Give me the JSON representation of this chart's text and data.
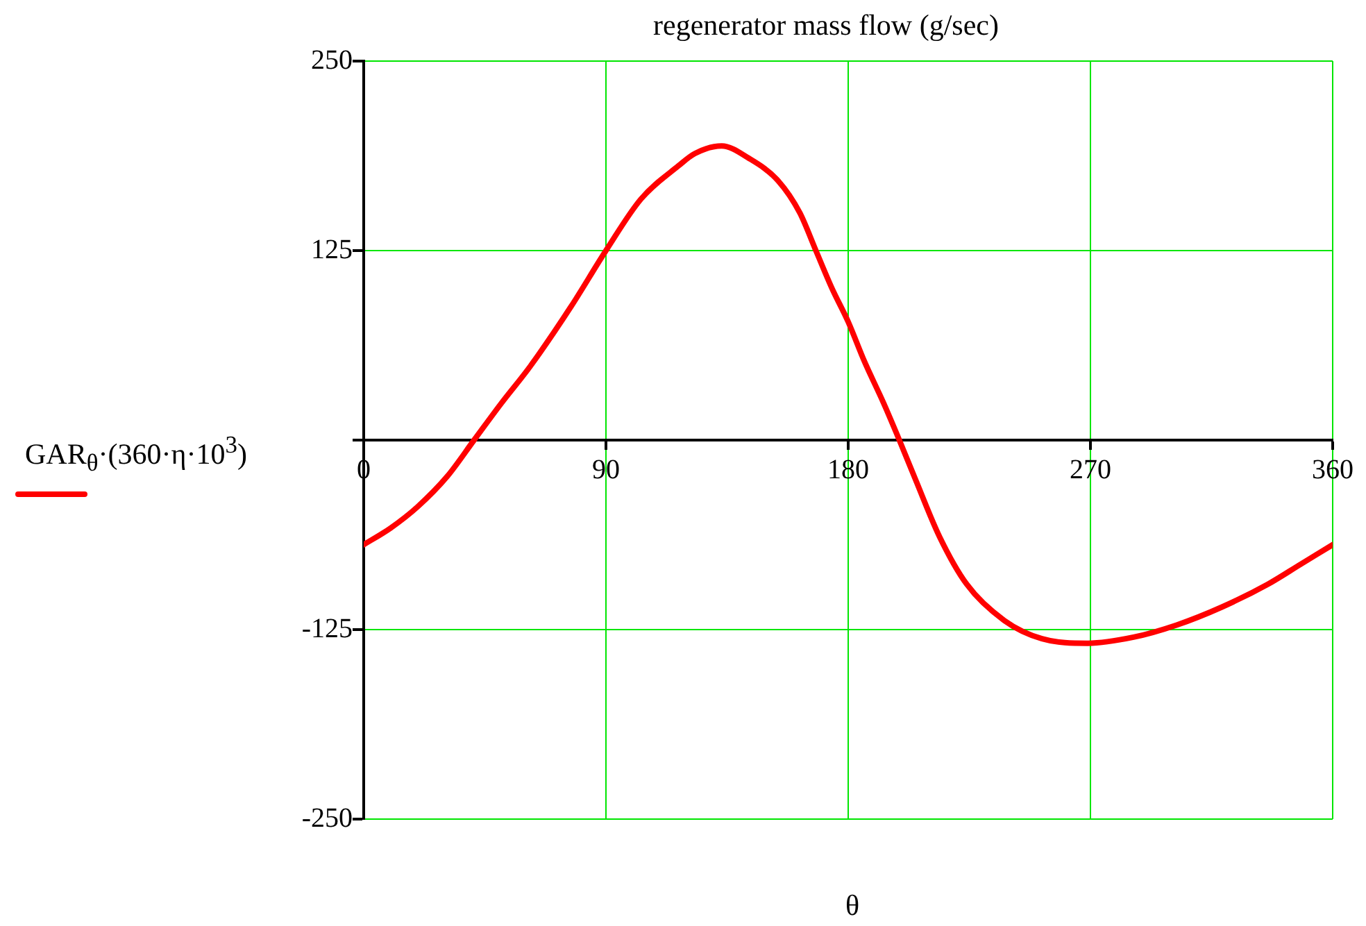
{
  "chart_data": {
    "type": "line",
    "title": "regenerator mass flow (g/sec)",
    "xlabel": "θ",
    "x": [
      0,
      10,
      20,
      31,
      41,
      51,
      62,
      77,
      90,
      103,
      117,
      123,
      133,
      143,
      154,
      162,
      168,
      174,
      180,
      186,
      193,
      199,
      205,
      214,
      224,
      238,
      252,
      269,
      286,
      302,
      319,
      336,
      348,
      360
    ],
    "series": [
      {
        "name": "GAR$_{θ}$·(360·η·10$^{3}$)",
        "color": "#ff0000",
        "values": [
          -69,
          -58,
          -44,
          -24,
          0,
          24,
          49,
          88,
          125,
          159,
          181,
          189,
          194,
          186,
          171,
          150,
          125,
          100,
          78,
          52,
          25,
          0,
          -26,
          -64,
          -95,
          -119,
          -131,
          -134,
          -130,
          -122,
          -110,
          -95,
          -82,
          -69
        ]
      }
    ],
    "xlim": [
      0,
      360
    ],
    "xticks": [
      0,
      90,
      180,
      270,
      360
    ],
    "ylim": [
      -250,
      250
    ],
    "yticks": [
      -250,
      -125,
      {
        "value": 0,
        "label": null
      },
      125,
      250
    ],
    "grid": true,
    "legend": "left",
    "marker": "none",
    "line_style": "solid"
  }
}
